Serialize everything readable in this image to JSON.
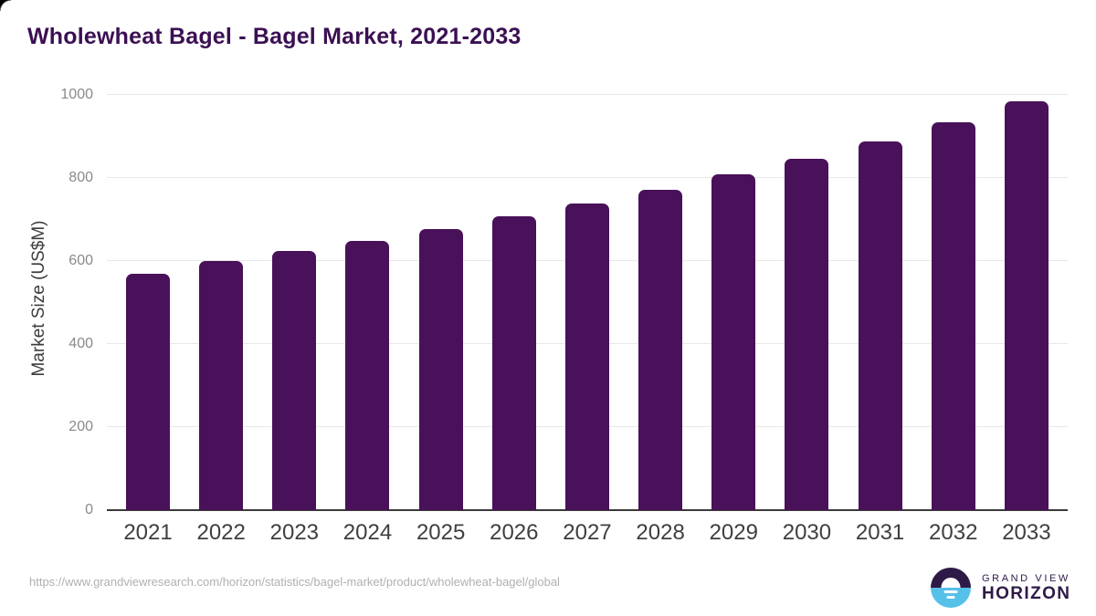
{
  "header": {
    "title": "Wholewheat Bagel - Bagel Market, 2021-2033"
  },
  "footer": {
    "source_url": "https://www.grandviewresearch.com/horizon/statistics/bagel-market/product/wholewheat-bagel/global",
    "logo": {
      "line1": "GRAND VIEW",
      "line2": "HORIZON",
      "icon": "sun-over-horizon-icon"
    }
  },
  "colors": {
    "bar": "#491159",
    "title": "#3b1053",
    "axis_label": "#3c3c3c",
    "tick": "#8a8a8a",
    "xtick": "#3f3f3f",
    "gridline": "#e8e8e8",
    "baseline": "#3a3a3a",
    "url": "#b0b0b0",
    "logo_dark": "#2e1a47",
    "logo_blue": "#56c1e8"
  },
  "chart_data": {
    "type": "bar",
    "title": "Wholewheat Bagel - Bagel Market, 2021-2033",
    "categories": [
      "2021",
      "2022",
      "2023",
      "2024",
      "2025",
      "2026",
      "2027",
      "2028",
      "2029",
      "2030",
      "2031",
      "2032",
      "2033"
    ],
    "values": [
      570,
      599,
      624,
      649,
      677,
      707,
      738,
      772,
      808,
      847,
      889,
      935,
      984
    ],
    "xlabel": "",
    "ylabel": "Market Size (US$M)",
    "ylim": [
      0,
      1000
    ],
    "y_ticks": [
      0,
      200,
      400,
      600,
      800,
      1000
    ],
    "grid": "horizontal",
    "legend": "none",
    "bar_color": "#491159",
    "background": "#ffffff"
  }
}
